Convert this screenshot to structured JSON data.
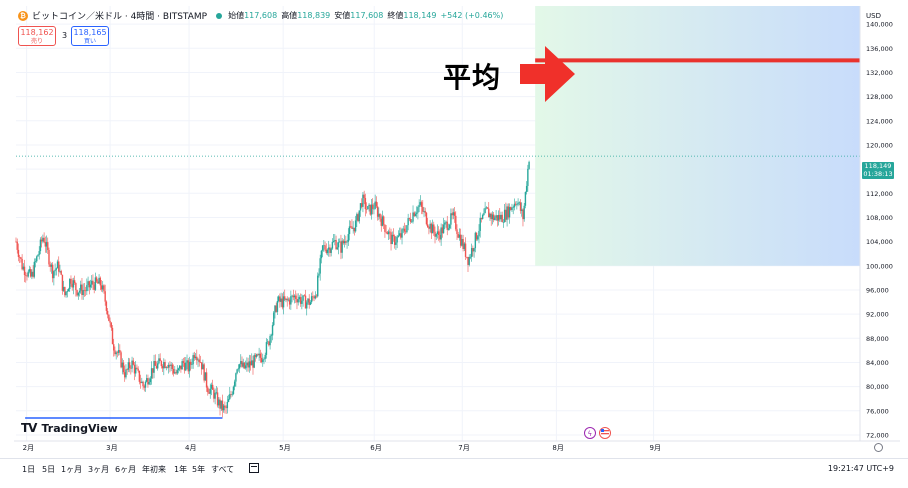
{
  "header": {
    "title": "ビットコイン／米ドル · 4時間 · BITSTAMP",
    "open_label": "始値",
    "open_value": "117,608",
    "high_label": "高値",
    "high_value": "118,839",
    "low_label": "安値",
    "low_value": "117,608",
    "close_label": "終値",
    "close_value": "118,149",
    "change": "+542 (+0.46%)"
  },
  "quote": {
    "sell_price": "118,162",
    "sell_label": "売り",
    "buy_price": "118,165",
    "buy_label": "買い",
    "spread": "3"
  },
  "annotation_label": "平均",
  "currency": "USD",
  "current_price": {
    "price": "118,149",
    "countdown": "01:38:13"
  },
  "brand": "TradingView",
  "range_buttons": [
    "1日",
    "5日",
    "1ヶ月",
    "3ヶ月",
    "6ヶ月",
    "年初来",
    "1年",
    "5年",
    "すべて"
  ],
  "clock": "19:21:47 UTC+9",
  "colors": {
    "up": "#26a69a",
    "down": "#ef5350",
    "avg_line": "#e9332e",
    "arrow": "#f0302a",
    "zone_left": "#e3f8e8",
    "zone_right": "#c8dcfb",
    "support_line": "#2962ff"
  },
  "chart_data": {
    "type": "candlestick",
    "timeframe": "4h",
    "x_ticks": [
      "2月",
      "3月",
      "4月",
      "5月",
      "6月",
      "7月",
      "8月",
      "9月"
    ],
    "y_ticks": [
      72000,
      76000,
      80000,
      84000,
      88000,
      92000,
      96000,
      100000,
      104000,
      108000,
      112000,
      116000,
      120000,
      124000,
      128000,
      132000,
      136000,
      140000
    ],
    "y_range": [
      71000,
      143000
    ],
    "price_path": [
      [
        0,
        104000
      ],
      [
        2,
        100000
      ],
      [
        5,
        98000
      ],
      [
        9,
        105000
      ],
      [
        12,
        99000
      ],
      [
        14,
        100000
      ],
      [
        16,
        95000
      ],
      [
        18,
        98000
      ],
      [
        20,
        96000
      ],
      [
        23,
        96000
      ],
      [
        25,
        97000
      ],
      [
        28,
        97000
      ],
      [
        30,
        93000
      ],
      [
        32,
        87000
      ],
      [
        34,
        85000
      ],
      [
        36,
        82000
      ],
      [
        38,
        84000
      ],
      [
        40,
        82000
      ],
      [
        42,
        80000
      ],
      [
        45,
        83000
      ],
      [
        48,
        84000
      ],
      [
        50,
        84000
      ],
      [
        53,
        82000
      ],
      [
        55,
        84000
      ],
      [
        57,
        83000
      ],
      [
        59,
        86000
      ],
      [
        61,
        84000
      ],
      [
        63,
        80000
      ],
      [
        65,
        79000
      ],
      [
        67,
        77000
      ],
      [
        69,
        76000
      ],
      [
        71,
        79000
      ],
      [
        73,
        84000
      ],
      [
        75,
        83000
      ],
      [
        78,
        84000
      ],
      [
        81,
        85000
      ],
      [
        83,
        87000
      ],
      [
        86,
        94000
      ],
      [
        89,
        94000
      ],
      [
        92,
        95000
      ],
      [
        95,
        94000
      ],
      [
        97,
        94000
      ],
      [
        99,
        96000
      ],
      [
        101,
        103000
      ],
      [
        103,
        103000
      ],
      [
        105,
        104000
      ],
      [
        107,
        103000
      ],
      [
        109,
        105000
      ],
      [
        112,
        107000
      ],
      [
        114,
        111000
      ],
      [
        116,
        109000
      ],
      [
        118,
        110000
      ],
      [
        120,
        108000
      ],
      [
        122,
        106000
      ],
      [
        124,
        104000
      ],
      [
        127,
        105000
      ],
      [
        129,
        107000
      ],
      [
        131,
        109000
      ],
      [
        133,
        110000
      ],
      [
        135,
        108000
      ],
      [
        137,
        106000
      ],
      [
        139,
        105000
      ],
      [
        142,
        107000
      ],
      [
        144,
        108000
      ],
      [
        146,
        105000
      ],
      [
        149,
        101000
      ],
      [
        151,
        104000
      ],
      [
        153,
        107000
      ],
      [
        155,
        109000
      ],
      [
        157,
        108000
      ],
      [
        160,
        108000
      ],
      [
        162,
        109000
      ],
      [
        165,
        111000
      ],
      [
        167,
        108000
      ],
      [
        169,
        118000
      ]
    ],
    "x_range": [
      0,
      278
    ],
    "month_positions": [
      [
        3.5,
        "2月"
      ],
      [
        31,
        "3月"
      ],
      [
        57,
        "4月"
      ],
      [
        88,
        "5月"
      ],
      [
        118,
        "6月"
      ],
      [
        147,
        "7月"
      ],
      [
        178,
        "8月"
      ],
      [
        210,
        "9月"
      ]
    ],
    "avg_level": 134000,
    "zone": {
      "x_start": 171,
      "x_end": 278,
      "y_low": 100000,
      "y_high": 143000
    },
    "support_line": {
      "x_start": 3,
      "x_end": 68,
      "y": 74800
    },
    "last_price": 118149,
    "events": [
      "lightning",
      "us-flag"
    ]
  }
}
